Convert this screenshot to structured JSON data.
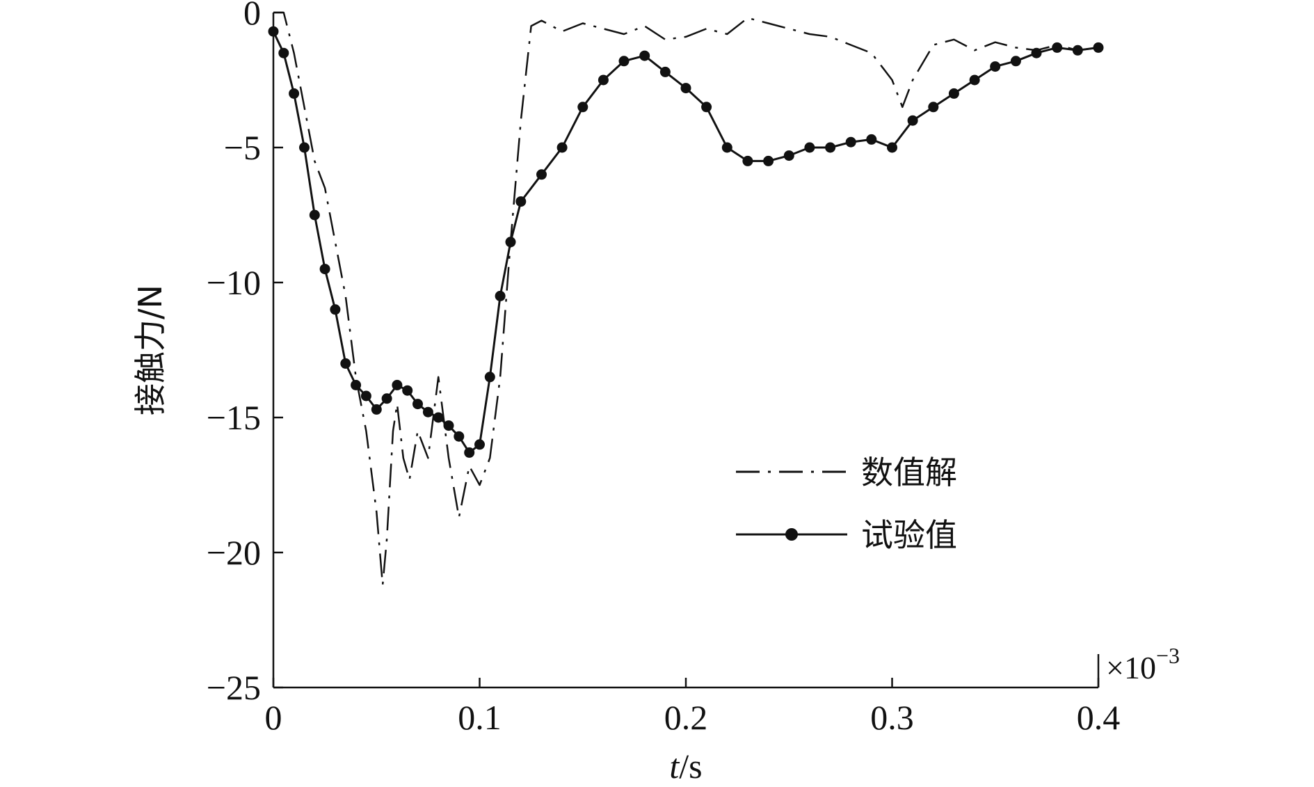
{
  "chart_data": {
    "type": "line",
    "xlabel_italic": "t",
    "xlabel_unit": "/s",
    "ylabel": "接触力/N",
    "x_multiplier": "×10",
    "x_multiplier_exp": "−3",
    "xlim": [
      0,
      0.4
    ],
    "ylim": [
      -25,
      0
    ],
    "xticks": [
      0,
      0.1,
      0.2,
      0.3,
      0.4
    ],
    "xtick_labels": [
      "0",
      "0.1",
      "0.2",
      "0.3",
      "0.4"
    ],
    "yticks": [
      0,
      -5,
      -10,
      -15,
      -20,
      -25
    ],
    "ytick_labels": [
      "0",
      "−5",
      "−10",
      "−15",
      "−20",
      "−25"
    ],
    "grid": false,
    "legend_position": "center-right",
    "colors": {
      "line": "#111111",
      "background": "#ffffff"
    },
    "series": [
      {
        "name": "数值解",
        "style": "dash-dot",
        "x": [
          0,
          0.005,
          0.01,
          0.015,
          0.02,
          0.025,
          0.03,
          0.035,
          0.04,
          0.045,
          0.05,
          0.053,
          0.055,
          0.058,
          0.06,
          0.063,
          0.066,
          0.07,
          0.075,
          0.08,
          0.085,
          0.09,
          0.095,
          0.1,
          0.105,
          0.11,
          0.115,
          0.12,
          0.125,
          0.13,
          0.14,
          0.15,
          0.16,
          0.17,
          0.18,
          0.19,
          0.2,
          0.21,
          0.22,
          0.23,
          0.24,
          0.25,
          0.26,
          0.27,
          0.28,
          0.29,
          0.295,
          0.3,
          0.305,
          0.31,
          0.32,
          0.33,
          0.34,
          0.35,
          0.36,
          0.37,
          0.38,
          0.39,
          0.4
        ],
        "y": [
          0,
          0,
          -1.5,
          -3.5,
          -5.5,
          -6.5,
          -8.5,
          -10.5,
          -13.5,
          -15.5,
          -18.5,
          -21.2,
          -19.5,
          -15.5,
          -14.5,
          -16.5,
          -17.3,
          -15.5,
          -16.5,
          -13.5,
          -16.5,
          -18.7,
          -16.8,
          -17.5,
          -16.5,
          -13.5,
          -8.5,
          -4.0,
          -0.5,
          -0.3,
          -0.7,
          -0.4,
          -0.6,
          -0.8,
          -0.5,
          -1.0,
          -0.9,
          -0.6,
          -0.8,
          -0.2,
          -0.4,
          -0.6,
          -0.8,
          -0.9,
          -1.2,
          -1.5,
          -2.0,
          -2.5,
          -3.5,
          -2.5,
          -1.2,
          -1.0,
          -1.4,
          -1.1,
          -1.3,
          -1.4,
          -1.2,
          -1.4,
          -1.3
        ]
      },
      {
        "name": "试验值",
        "style": "solid-dots",
        "x": [
          0,
          0.005,
          0.01,
          0.015,
          0.02,
          0.025,
          0.03,
          0.035,
          0.04,
          0.045,
          0.05,
          0.055,
          0.06,
          0.065,
          0.07,
          0.075,
          0.08,
          0.085,
          0.09,
          0.095,
          0.1,
          0.105,
          0.11,
          0.115,
          0.12,
          0.13,
          0.14,
          0.15,
          0.16,
          0.17,
          0.18,
          0.19,
          0.2,
          0.21,
          0.22,
          0.23,
          0.24,
          0.25,
          0.26,
          0.27,
          0.28,
          0.29,
          0.3,
          0.31,
          0.32,
          0.33,
          0.34,
          0.35,
          0.36,
          0.37,
          0.38,
          0.39,
          0.4
        ],
        "y": [
          -0.7,
          -1.5,
          -3.0,
          -5.0,
          -7.5,
          -9.5,
          -11.0,
          -13.0,
          -13.8,
          -14.2,
          -14.7,
          -14.3,
          -13.8,
          -14.0,
          -14.5,
          -14.8,
          -15.0,
          -15.3,
          -15.7,
          -16.3,
          -16.0,
          -13.5,
          -10.5,
          -8.5,
          -7.0,
          -6.0,
          -5.0,
          -3.5,
          -2.5,
          -1.8,
          -1.6,
          -2.2,
          -2.8,
          -3.5,
          -5.0,
          -5.5,
          -5.5,
          -5.3,
          -5.0,
          -5.0,
          -4.8,
          -4.7,
          -5.0,
          -4.0,
          -3.5,
          -3.0,
          -2.5,
          -2.0,
          -1.8,
          -1.5,
          -1.3,
          -1.4,
          -1.3
        ]
      }
    ]
  }
}
